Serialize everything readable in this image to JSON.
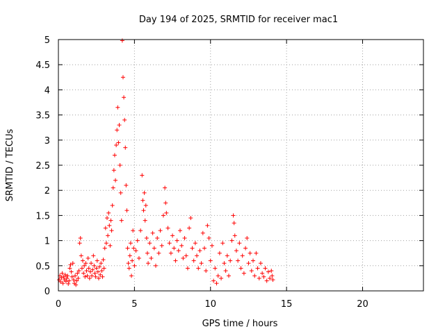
{
  "chart_data": {
    "type": "scatter",
    "title": "Day 194 of 2025, SRMTID for receiver mac1",
    "xlabel": "GPS time / hours",
    "ylabel": "SRMTID / TECUs",
    "xlim": [
      0,
      24
    ],
    "ylim": [
      0,
      5
    ],
    "xticks": [
      0,
      5,
      10,
      15,
      20
    ],
    "yticks": [
      0,
      0.5,
      1,
      1.5,
      2,
      2.5,
      3,
      3.5,
      4,
      4.5,
      5
    ],
    "xtick_labels": [
      "0",
      "5",
      "10",
      "15",
      "20"
    ],
    "ytick_labels": [
      "0",
      "0.5",
      "1",
      "1.5",
      "2",
      "2.5",
      "3",
      "3.5",
      "4",
      "4.5",
      "5"
    ],
    "grid": true,
    "marker": "+",
    "color": "#ff0000",
    "series": [
      {
        "name": "mac1",
        "points": [
          [
            0.05,
            0.22
          ],
          [
            0.1,
            0.3
          ],
          [
            0.15,
            0.18
          ],
          [
            0.2,
            0.26
          ],
          [
            0.25,
            0.35
          ],
          [
            0.3,
            0.15
          ],
          [
            0.35,
            0.28
          ],
          [
            0.4,
            0.22
          ],
          [
            0.45,
            0.32
          ],
          [
            0.5,
            0.19
          ],
          [
            0.55,
            0.25
          ],
          [
            0.6,
            0.3
          ],
          [
            0.65,
            0.14
          ],
          [
            0.7,
            0.2
          ],
          [
            0.75,
            0.45
          ],
          [
            0.8,
            0.52
          ],
          [
            0.85,
            0.38
          ],
          [
            0.9,
            0.28
          ],
          [
            0.95,
            0.55
          ],
          [
            1.0,
            0.22
          ],
          [
            1.05,
            0.15
          ],
          [
            1.1,
            0.3
          ],
          [
            1.15,
            0.12
          ],
          [
            1.2,
            0.2
          ],
          [
            1.25,
            0.35
          ],
          [
            1.3,
            0.25
          ],
          [
            1.35,
            0.4
          ],
          [
            1.4,
            0.95
          ],
          [
            1.45,
            1.05
          ],
          [
            1.5,
            0.7
          ],
          [
            1.55,
            0.45
          ],
          [
            1.6,
            0.6
          ],
          [
            1.65,
            0.35
          ],
          [
            1.7,
            0.5
          ],
          [
            1.75,
            0.28
          ],
          [
            1.8,
            0.55
          ],
          [
            1.85,
            0.4
          ],
          [
            1.9,
            0.3
          ],
          [
            1.95,
            0.65
          ],
          [
            2.0,
            0.45
          ],
          [
            2.05,
            0.25
          ],
          [
            2.1,
            0.38
          ],
          [
            2.15,
            0.55
          ],
          [
            2.2,
            0.3
          ],
          [
            2.25,
            0.42
          ],
          [
            2.3,
            0.7
          ],
          [
            2.35,
            0.5
          ],
          [
            2.4,
            0.35
          ],
          [
            2.45,
            0.28
          ],
          [
            2.5,
            0.45
          ],
          [
            2.55,
            0.6
          ],
          [
            2.6,
            0.38
          ],
          [
            2.65,
            0.25
          ],
          [
            2.7,
            0.48
          ],
          [
            2.75,
            0.32
          ],
          [
            2.8,
            0.55
          ],
          [
            2.85,
            0.4
          ],
          [
            2.9,
            0.28
          ],
          [
            2.95,
            0.62
          ],
          [
            3.0,
            0.45
          ],
          [
            3.05,
            0.85
          ],
          [
            3.1,
            1.25
          ],
          [
            3.15,
            0.95
          ],
          [
            3.2,
            1.45
          ],
          [
            3.25,
            1.1
          ],
          [
            3.3,
            1.55
          ],
          [
            3.35,
            1.3
          ],
          [
            3.4,
            0.9
          ],
          [
            3.45,
            1.4
          ],
          [
            3.5,
            1.2
          ],
          [
            3.55,
            1.7
          ],
          [
            3.6,
            2.05
          ],
          [
            3.65,
            2.4
          ],
          [
            3.7,
            2.7
          ],
          [
            3.75,
            2.2
          ],
          [
            3.8,
            2.9
          ],
          [
            3.85,
            3.2
          ],
          [
            3.9,
            3.65
          ],
          [
            3.95,
            2.95
          ],
          [
            4.0,
            3.3
          ],
          [
            4.05,
            2.5
          ],
          [
            4.1,
            1.95
          ],
          [
            4.15,
            1.4
          ],
          [
            4.2,
            4.98
          ],
          [
            4.25,
            4.25
          ],
          [
            4.3,
            3.85
          ],
          [
            4.35,
            3.4
          ],
          [
            4.4,
            2.85
          ],
          [
            4.45,
            2.1
          ],
          [
            4.5,
            1.6
          ],
          [
            4.55,
            0.85
          ],
          [
            4.6,
            0.55
          ],
          [
            4.65,
            0.45
          ],
          [
            4.7,
            0.7
          ],
          [
            4.75,
            0.95
          ],
          [
            4.8,
            0.3
          ],
          [
            4.85,
            0.6
          ],
          [
            4.9,
            1.2
          ],
          [
            4.95,
            0.85
          ],
          [
            5.0,
            0.5
          ],
          [
            5.1,
            0.8
          ],
          [
            5.2,
            1.0
          ],
          [
            5.3,
            0.65
          ],
          [
            5.4,
            1.2
          ],
          [
            5.5,
            2.3
          ],
          [
            5.55,
            1.8
          ],
          [
            5.6,
            1.6
          ],
          [
            5.65,
            1.95
          ],
          [
            5.7,
            1.4
          ],
          [
            5.75,
            1.7
          ],
          [
            5.8,
            1.05
          ],
          [
            5.85,
            0.75
          ],
          [
            5.9,
            0.55
          ],
          [
            6.0,
            0.95
          ],
          [
            6.1,
            0.65
          ],
          [
            6.2,
            1.15
          ],
          [
            6.3,
            0.85
          ],
          [
            6.4,
            0.5
          ],
          [
            6.5,
            1.05
          ],
          [
            6.6,
            0.75
          ],
          [
            6.7,
            1.2
          ],
          [
            6.8,
            0.9
          ],
          [
            6.9,
            1.5
          ],
          [
            7.0,
            2.05
          ],
          [
            7.05,
            1.75
          ],
          [
            7.1,
            1.55
          ],
          [
            7.2,
            1.25
          ],
          [
            7.3,
            0.95
          ],
          [
            7.4,
            0.75
          ],
          [
            7.5,
            1.1
          ],
          [
            7.6,
            0.85
          ],
          [
            7.7,
            0.6
          ],
          [
            7.8,
            1.0
          ],
          [
            7.9,
            0.8
          ],
          [
            8.0,
            1.2
          ],
          [
            8.1,
            0.9
          ],
          [
            8.2,
            0.65
          ],
          [
            8.3,
            1.05
          ],
          [
            8.4,
            0.7
          ],
          [
            8.5,
            0.45
          ],
          [
            8.6,
            1.25
          ],
          [
            8.7,
            1.45
          ],
          [
            8.8,
            0.85
          ],
          [
            8.9,
            0.6
          ],
          [
            9.0,
            0.95
          ],
          [
            9.1,
            0.7
          ],
          [
            9.2,
            0.45
          ],
          [
            9.3,
            0.8
          ],
          [
            9.4,
            0.55
          ],
          [
            9.5,
            1.15
          ],
          [
            9.6,
            0.85
          ],
          [
            9.7,
            0.4
          ],
          [
            9.8,
            1.3
          ],
          [
            9.9,
            1.05
          ],
          [
            10.0,
            0.6
          ],
          [
            10.1,
            0.9
          ],
          [
            10.2,
            0.2
          ],
          [
            10.3,
            0.45
          ],
          [
            10.4,
            0.15
          ],
          [
            10.5,
            0.3
          ],
          [
            10.6,
            0.75
          ],
          [
            10.7,
            0.25
          ],
          [
            10.8,
            0.95
          ],
          [
            10.9,
            0.55
          ],
          [
            11.0,
            0.4
          ],
          [
            11.1,
            0.7
          ],
          [
            11.2,
            0.3
          ],
          [
            11.3,
            0.6
          ],
          [
            11.4,
            1.0
          ],
          [
            11.5,
            1.5
          ],
          [
            11.55,
            1.35
          ],
          [
            11.6,
            1.1
          ],
          [
            11.7,
            0.8
          ],
          [
            11.8,
            0.6
          ],
          [
            11.9,
            0.95
          ],
          [
            12.0,
            0.45
          ],
          [
            12.1,
            0.7
          ],
          [
            12.2,
            0.35
          ],
          [
            12.3,
            0.85
          ],
          [
            12.4,
            1.05
          ],
          [
            12.5,
            0.55
          ],
          [
            12.6,
            0.75
          ],
          [
            12.7,
            0.4
          ],
          [
            12.8,
            0.6
          ],
          [
            12.9,
            0.3
          ],
          [
            13.0,
            0.75
          ],
          [
            13.1,
            0.45
          ],
          [
            13.2,
            0.25
          ],
          [
            13.3,
            0.55
          ],
          [
            13.4,
            0.35
          ],
          [
            13.5,
            0.28
          ],
          [
            13.6,
            0.45
          ],
          [
            13.7,
            0.2
          ],
          [
            13.8,
            0.38
          ],
          [
            13.9,
            0.25
          ],
          [
            14.0,
            0.4
          ],
          [
            14.05,
            0.3
          ],
          [
            14.1,
            0.22
          ]
        ]
      }
    ]
  }
}
